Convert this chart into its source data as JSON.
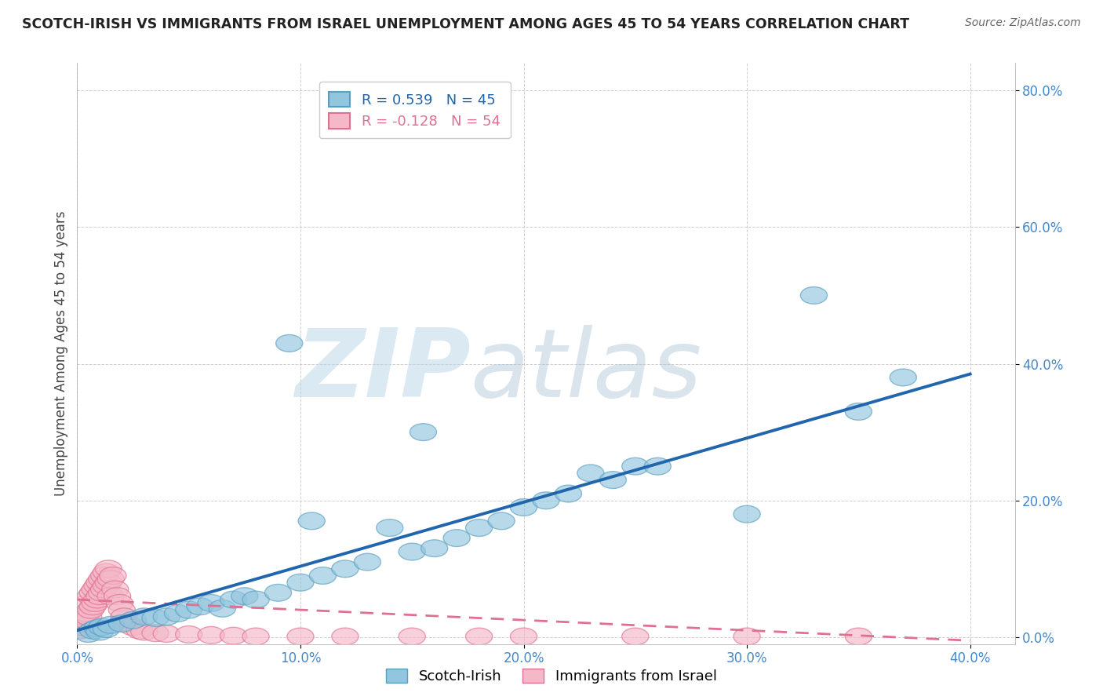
{
  "title": "SCOTCH-IRISH VS IMMIGRANTS FROM ISRAEL UNEMPLOYMENT AMONG AGES 45 TO 54 YEARS CORRELATION CHART",
  "source": "Source: ZipAtlas.com",
  "ylabel": "Unemployment Among Ages 45 to 54 years",
  "xlim": [
    0.0,
    0.42
  ],
  "ylim": [
    -0.01,
    0.84
  ],
  "xticks": [
    0.0,
    0.1,
    0.2,
    0.3,
    0.4
  ],
  "yticks": [
    0.0,
    0.2,
    0.4,
    0.6,
    0.8
  ],
  "xtick_labels": [
    "0.0%",
    "10.0%",
    "20.0%",
    "30.0%",
    "40.0%"
  ],
  "ytick_labels": [
    "0.0%",
    "20.0%",
    "40.0%",
    "60.0%",
    "80.0%"
  ],
  "scotch_irish_color": "#92c5de",
  "scotch_irish_edge_color": "#5a9fc0",
  "israel_color": "#f4b8c8",
  "israel_edge_color": "#e07090",
  "scotch_irish_line_color": "#2166ac",
  "israel_line_color": "#e07090",
  "R_scotch": 0.539,
  "N_scotch": 45,
  "R_israel": -0.128,
  "N_israel": 54,
  "watermark_zip": "ZIP",
  "watermark_atlas": "atlas",
  "background_color": "#ffffff",
  "grid_color": "#bbbbbb",
  "tick_color": "#4488cc",
  "scotch_irish_x": [
    0.005,
    0.007,
    0.009,
    0.01,
    0.011,
    0.013,
    0.015,
    0.02,
    0.025,
    0.03,
    0.035,
    0.04,
    0.045,
    0.05,
    0.055,
    0.06,
    0.065,
    0.07,
    0.075,
    0.08,
    0.09,
    0.095,
    0.1,
    0.105,
    0.11,
    0.12,
    0.13,
    0.14,
    0.15,
    0.155,
    0.16,
    0.17,
    0.18,
    0.19,
    0.2,
    0.21,
    0.22,
    0.23,
    0.24,
    0.25,
    0.26,
    0.3,
    0.33,
    0.35,
    0.37
  ],
  "scotch_irish_y": [
    0.005,
    0.01,
    0.013,
    0.008,
    0.015,
    0.012,
    0.018,
    0.02,
    0.025,
    0.03,
    0.028,
    0.03,
    0.035,
    0.04,
    0.045,
    0.05,
    0.042,
    0.055,
    0.06,
    0.055,
    0.065,
    0.43,
    0.08,
    0.17,
    0.09,
    0.1,
    0.11,
    0.16,
    0.125,
    0.3,
    0.13,
    0.145,
    0.16,
    0.17,
    0.19,
    0.2,
    0.21,
    0.24,
    0.23,
    0.25,
    0.25,
    0.18,
    0.5,
    0.33,
    0.38
  ],
  "israel_x": [
    0.001,
    0.001,
    0.002,
    0.002,
    0.003,
    0.003,
    0.004,
    0.004,
    0.005,
    0.005,
    0.006,
    0.006,
    0.007,
    0.007,
    0.008,
    0.008,
    0.009,
    0.009,
    0.01,
    0.01,
    0.011,
    0.011,
    0.012,
    0.012,
    0.013,
    0.013,
    0.014,
    0.014,
    0.015,
    0.015,
    0.016,
    0.017,
    0.018,
    0.019,
    0.02,
    0.021,
    0.022,
    0.025,
    0.028,
    0.03,
    0.035,
    0.04,
    0.05,
    0.06,
    0.07,
    0.08,
    0.1,
    0.12,
    0.15,
    0.18,
    0.2,
    0.25,
    0.3,
    0.35
  ],
  "israel_y": [
    0.01,
    0.02,
    0.015,
    0.025,
    0.02,
    0.03,
    0.025,
    0.035,
    0.03,
    0.05,
    0.04,
    0.06,
    0.045,
    0.065,
    0.05,
    0.07,
    0.055,
    0.075,
    0.06,
    0.08,
    0.065,
    0.085,
    0.07,
    0.09,
    0.075,
    0.095,
    0.08,
    0.1,
    0.085,
    0.06,
    0.09,
    0.07,
    0.06,
    0.05,
    0.04,
    0.03,
    0.02,
    0.015,
    0.01,
    0.008,
    0.006,
    0.005,
    0.004,
    0.003,
    0.002,
    0.001,
    0.001,
    0.001,
    0.001,
    0.001,
    0.001,
    0.001,
    0.001,
    0.001
  ],
  "si_line_x0": 0.0,
  "si_line_y0": 0.01,
  "si_line_x1": 0.4,
  "si_line_y1": 0.385,
  "isr_line_x0": 0.0,
  "isr_line_y0": 0.055,
  "isr_line_x1": 0.4,
  "isr_line_y1": -0.005
}
